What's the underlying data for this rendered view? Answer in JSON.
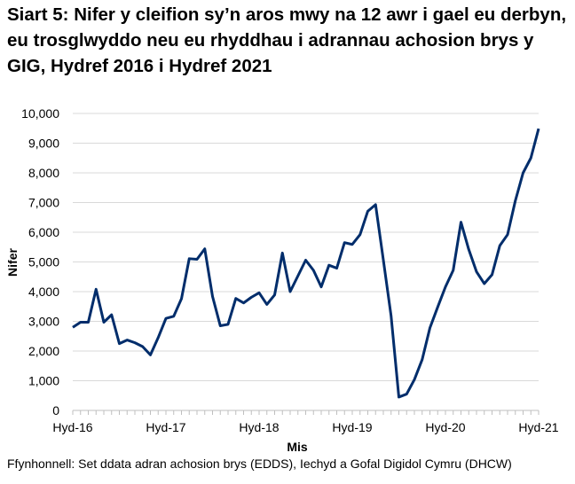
{
  "chart_data": {
    "type": "line",
    "title": "Siart 5: Nifer y cleifion sy’n aros mwy na 12 awr i gael eu derbyn, eu trosglwyddo neu eu rhyddhau i adrannau achosion brys y GIG, Hydref 2016 i Hydref 2021",
    "xlabel": "Mis",
    "ylabel": "Nifer",
    "ylim": [
      0,
      10000
    ],
    "yticks": [
      "0",
      "1,000",
      "2,000",
      "3,000",
      "4,000",
      "5,000",
      "6,000",
      "7,000",
      "8,000",
      "9,000",
      "10,000"
    ],
    "xtick_labels": [
      "Hyd-16",
      "Hyd-17",
      "Hyd-18",
      "Hyd-19",
      "Hyd-20",
      "Hyd-21"
    ],
    "xtick_every": 12,
    "grid": true,
    "line_color": "#002d6b",
    "values": [
      2800,
      2970,
      2970,
      4080,
      2970,
      3220,
      2250,
      2370,
      2280,
      2150,
      1870,
      2450,
      3100,
      3170,
      3760,
      5110,
      5090,
      5440,
      3840,
      2850,
      2900,
      3770,
      3620,
      3810,
      3960,
      3570,
      3890,
      5300,
      4000,
      4530,
      5060,
      4720,
      4160,
      4890,
      4790,
      5650,
      5590,
      5920,
      6710,
      6930,
      5070,
      3180,
      450,
      550,
      1040,
      1710,
      2780,
      3480,
      4160,
      4720,
      6340,
      5420,
      4670,
      4270,
      4570,
      5550,
      5920,
      7060,
      8000,
      8500,
      9490
    ]
  },
  "source": "Ffynhonnell: Set ddata adran achosion brys (EDDS), Iechyd a Gofal Digidol Cymru (DHCW)"
}
